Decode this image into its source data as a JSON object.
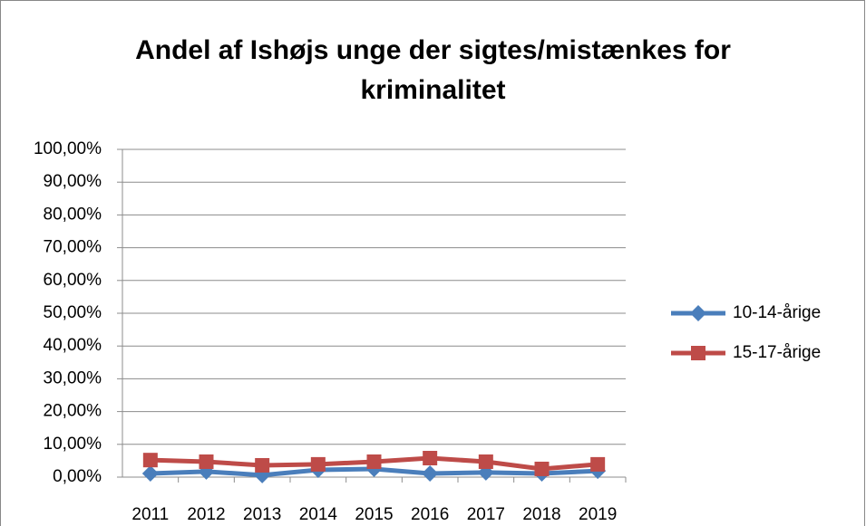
{
  "chart_data": {
    "type": "line",
    "title": "Andel af Ishøjs unge der sigtes/mistænkes for kriminalitet",
    "categories": [
      "2011",
      "2012",
      "2013",
      "2014",
      "2015",
      "2016",
      "2017",
      "2018",
      "2019"
    ],
    "series": [
      {
        "name": "10-14-årige",
        "color": "#4a7ebb",
        "marker": "diamond",
        "values": [
          1.1,
          1.7,
          0.6,
          2.2,
          2.5,
          1.1,
          1.4,
          1.1,
          1.9
        ]
      },
      {
        "name": "15-17-årige",
        "color": "#be4b48",
        "marker": "square",
        "values": [
          5.2,
          4.7,
          3.6,
          3.9,
          4.7,
          5.8,
          4.7,
          2.5,
          3.9
        ]
      }
    ],
    "ylim": [
      0,
      100
    ],
    "yticks": [
      {
        "value": 0,
        "label": "0,00%"
      },
      {
        "value": 10,
        "label": "10,00%"
      },
      {
        "value": 20,
        "label": "20,00%"
      },
      {
        "value": 30,
        "label": "30,00%"
      },
      {
        "value": 40,
        "label": "40,00%"
      },
      {
        "value": 50,
        "label": "50,00%"
      },
      {
        "value": 60,
        "label": "60,00%"
      },
      {
        "value": 70,
        "label": "70,00%"
      },
      {
        "value": 80,
        "label": "80,00%"
      },
      {
        "value": 90,
        "label": "90,00%"
      },
      {
        "value": 100,
        "label": "100,00%"
      }
    ],
    "grid": true,
    "legend": "right"
  }
}
